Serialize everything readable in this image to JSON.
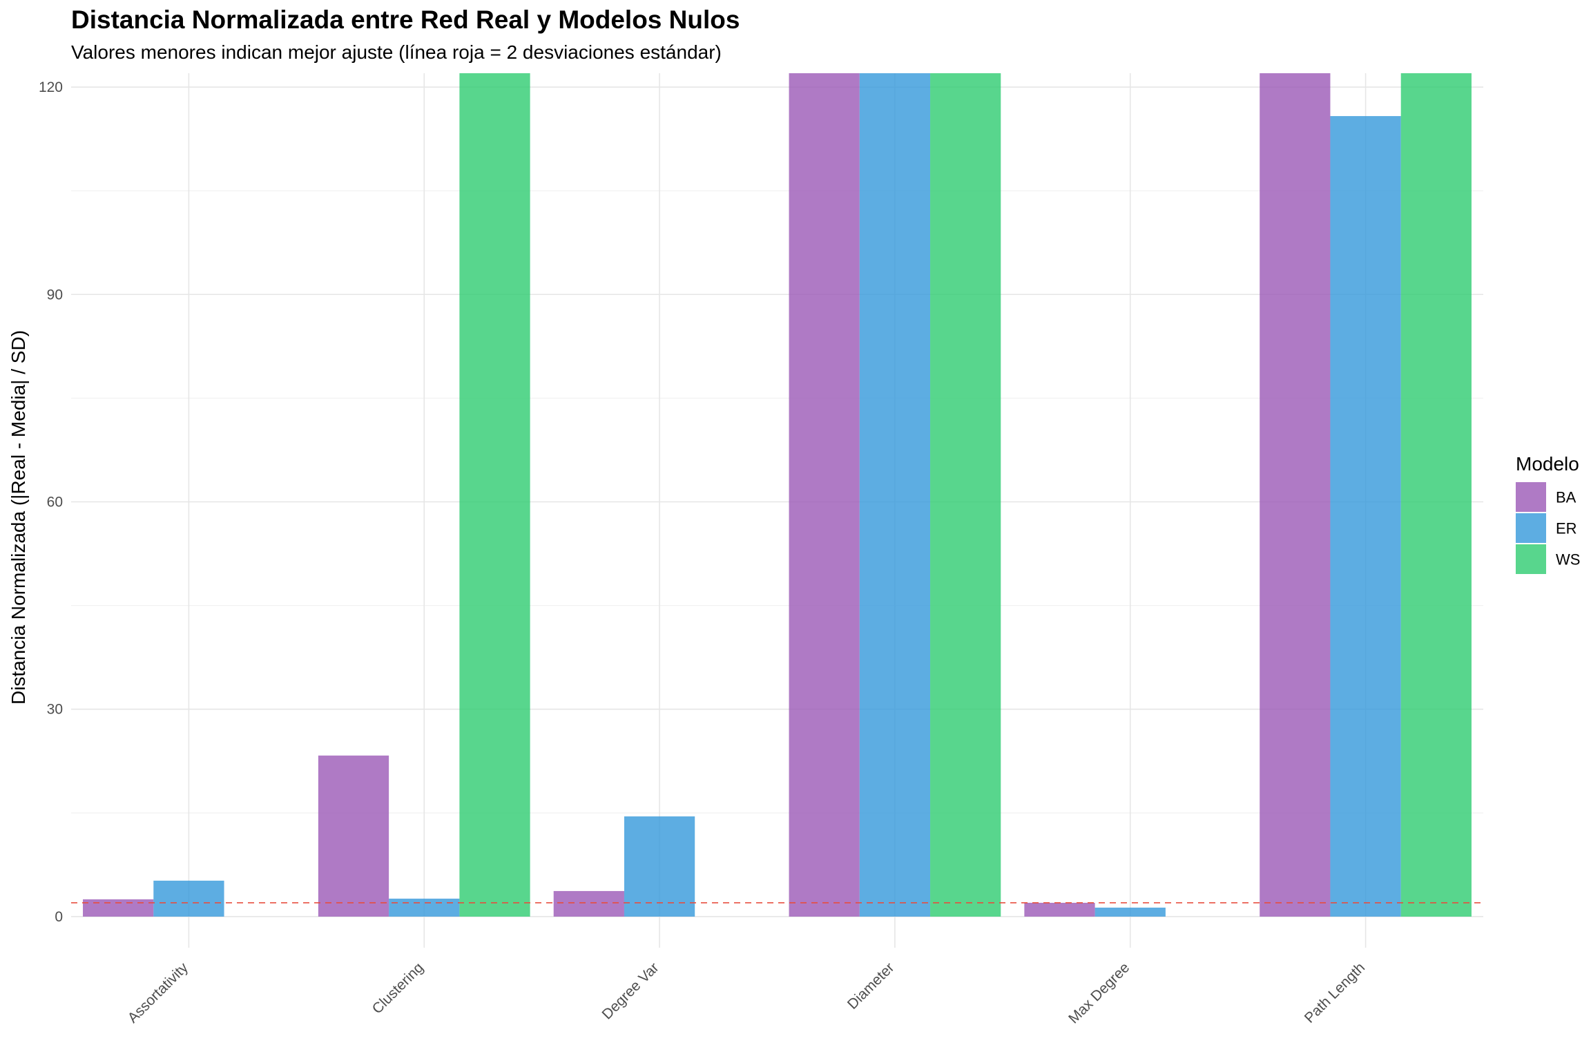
{
  "chart_data": {
    "type": "bar",
    "title": "Distancia Normalizada entre Red Real y Modelos Nulos",
    "subtitle": "Valores menores indican mejor ajuste (línea roja = 2 desviaciones estándar)",
    "xlabel": "",
    "ylabel": "Distancia Normalizada (|Real - Media| / SD)",
    "categories": [
      "Assortativity",
      "Clustering",
      "Degree Var",
      "Diameter",
      "Max Degree",
      "Path Length"
    ],
    "series": [
      {
        "name": "BA",
        "color": "#9B59B6",
        "values": [
          2.5,
          23.3,
          3.7,
          122,
          2.0,
          122
        ]
      },
      {
        "name": "ER",
        "color": "#3498DB",
        "values": [
          5.2,
          2.6,
          14.5,
          122,
          1.3,
          115.8
        ]
      },
      {
        "name": "WS",
        "color": "#2ECC71",
        "values": [
          0,
          122,
          0,
          122,
          0,
          122
        ]
      }
    ],
    "ylim": [
      -4.5,
      122
    ],
    "yticks": [
      0,
      30,
      60,
      90,
      120
    ],
    "reference_line": {
      "value": 2,
      "color": "#E74C3C",
      "style": "dashed"
    },
    "legend": {
      "title": "Modelo",
      "position": "right"
    },
    "grid": true
  }
}
